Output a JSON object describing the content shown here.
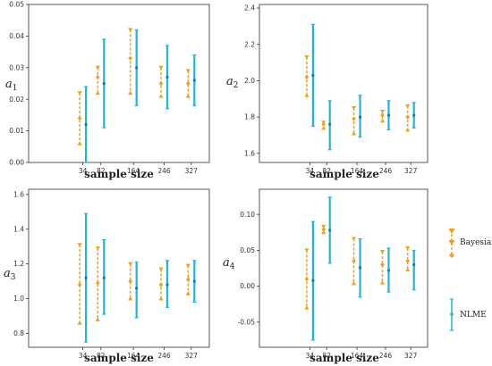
{
  "colors": {
    "bayesian": "#f0a020",
    "nlme": "#1fb4dc",
    "panel_border": "#555555",
    "axis": "#333333"
  },
  "legend": {
    "placement": "right",
    "entries": [
      "Bayesian",
      "NLME"
    ]
  },
  "chart_data": [
    {
      "type": "errorbar",
      "ylabel_base": "a",
      "ylabel_sub": "1",
      "xlabel": "sample size",
      "categories": [
        "34",
        "82",
        "164",
        "246",
        "327"
      ],
      "ylim": [
        0,
        0.05
      ],
      "yticks": [
        0.0,
        0.01,
        0.02,
        0.03,
        0.04,
        0.05
      ],
      "ytick_labels": [
        "0.00",
        "0.01",
        "0.02",
        "0.03",
        "0.04",
        "0.05"
      ],
      "series": [
        {
          "name": "Bayesian",
          "ranges": [
            [
              0.006,
              0.022
            ],
            [
              0.022,
              0.03
            ],
            [
              0.022,
              0.042
            ],
            [
              0.021,
              0.03
            ],
            [
              0.021,
              0.029
            ]
          ],
          "means": [
            0.014,
            0.027,
            0.033,
            0.025,
            0.025
          ]
        },
        {
          "name": "NLME",
          "ranges": [
            [
              0.0,
              0.024
            ],
            [
              0.011,
              0.039
            ],
            [
              0.018,
              0.042
            ],
            [
              0.017,
              0.037
            ],
            [
              0.018,
              0.034
            ]
          ],
          "means": [
            0.012,
            0.025,
            0.03,
            0.027,
            0.026
          ]
        }
      ]
    },
    {
      "type": "errorbar",
      "ylabel_base": "a",
      "ylabel_sub": "2",
      "xlabel": "sample size",
      "categories": [
        "34",
        "82",
        "164",
        "246",
        "327"
      ],
      "ylim": [
        1.55,
        2.42
      ],
      "yticks": [
        1.6,
        1.8,
        2.0,
        2.2,
        2.4
      ],
      "ytick_labels": [
        "1.6",
        "1.8",
        "2.0",
        "2.2",
        "2.4"
      ],
      "series": [
        {
          "name": "Bayesian",
          "ranges": [
            [
              1.92,
              2.13
            ],
            [
              1.74,
              1.77
            ],
            [
              1.71,
              1.85
            ],
            [
              1.78,
              1.83
            ],
            [
              1.73,
              1.86
            ]
          ],
          "means": [
            2.02,
            1.76,
            1.79,
            1.81,
            1.8
          ]
        },
        {
          "name": "NLME",
          "ranges": [
            [
              1.75,
              2.31
            ],
            [
              1.62,
              1.89
            ],
            [
              1.69,
              1.92
            ],
            [
              1.73,
              1.89
            ],
            [
              1.74,
              1.88
            ]
          ],
          "means": [
            2.03,
            1.76,
            1.8,
            1.81,
            1.81
          ]
        }
      ]
    },
    {
      "type": "errorbar",
      "ylabel_base": "a",
      "ylabel_sub": "3",
      "xlabel": "sample size",
      "categories": [
        "34",
        "82",
        "164",
        "246",
        "327"
      ],
      "ylim": [
        0.72,
        1.63
      ],
      "yticks": [
        0.8,
        1.0,
        1.2,
        1.4,
        1.6
      ],
      "ytick_labels": [
        "0.8",
        "1.0",
        "1.2",
        "1.4",
        "1.6"
      ],
      "series": [
        {
          "name": "Bayesian",
          "ranges": [
            [
              0.86,
              1.31
            ],
            [
              0.88,
              1.29
            ],
            [
              1.0,
              1.2
            ],
            [
              1.0,
              1.17
            ],
            [
              1.03,
              1.19
            ]
          ],
          "means": [
            1.08,
            1.09,
            1.1,
            1.08,
            1.11
          ]
        },
        {
          "name": "NLME",
          "ranges": [
            [
              0.75,
              1.49
            ],
            [
              0.91,
              1.34
            ],
            [
              0.89,
              1.21
            ],
            [
              0.95,
              1.22
            ],
            [
              0.98,
              1.22
            ]
          ],
          "means": [
            1.12,
            1.12,
            1.06,
            1.08,
            1.1
          ]
        }
      ]
    },
    {
      "type": "errorbar",
      "ylabel_base": "a",
      "ylabel_sub": "4",
      "xlabel": "sample size",
      "categories": [
        "34",
        "82",
        "164",
        "246",
        "327"
      ],
      "ylim": [
        -0.085,
        0.135
      ],
      "yticks": [
        -0.05,
        0.0,
        0.05,
        0.1
      ],
      "ytick_labels": [
        "-0.05",
        "0.00",
        "0.05",
        "0.10"
      ],
      "series": [
        {
          "name": "Bayesian",
          "ranges": [
            [
              -0.03,
              0.05
            ],
            [
              0.075,
              0.083
            ],
            [
              0.004,
              0.066
            ],
            [
              0.005,
              0.048
            ],
            [
              0.023,
              0.053
            ]
          ],
          "means": [
            0.01,
            0.079,
            0.035,
            0.03,
            0.035
          ]
        },
        {
          "name": "NLME",
          "ranges": [
            [
              -0.075,
              0.09
            ],
            [
              0.032,
              0.124
            ],
            [
              -0.015,
              0.066
            ],
            [
              -0.008,
              0.053
            ],
            [
              -0.005,
              0.05
            ]
          ],
          "means": [
            0.008,
            0.078,
            0.026,
            0.022,
            0.03
          ]
        }
      ]
    }
  ]
}
